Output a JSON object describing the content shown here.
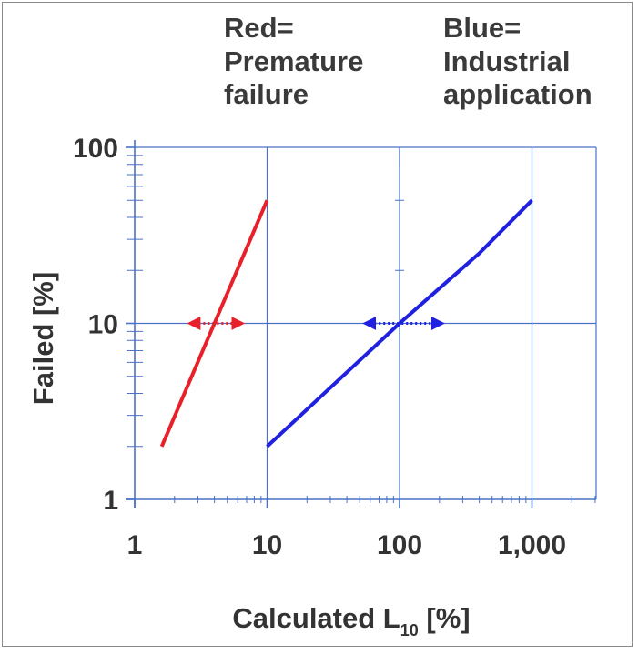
{
  "chart_data": {
    "type": "line",
    "x_scale": "log",
    "y_scale": "log",
    "xlim": [
      1,
      3000
    ],
    "ylim": [
      1,
      100
    ],
    "x_ticks": [
      1,
      10,
      100,
      1000
    ],
    "x_tick_labels": [
      "1",
      "10",
      "100",
      "1,000"
    ],
    "y_ticks": [
      1,
      10,
      100
    ],
    "y_tick_labels": [
      "1",
      "10",
      "100"
    ],
    "xlabel_main": "Calculated L",
    "xlabel_sub": "10",
    "xlabel_unit": " [%]",
    "ylabel": "Failed [%]",
    "grid": "major only",
    "annotations": {
      "red": [
        "Red=",
        "Premature",
        "failure"
      ],
      "blue": [
        "Blue=",
        "Industrial",
        "application"
      ]
    },
    "series": [
      {
        "color": "#e8202a",
        "points": [
          [
            1.6,
            2
          ],
          [
            10,
            50
          ]
        ],
        "spread_arrow": {
          "y": 10,
          "x_from": 2.6,
          "x_to": 6.5
        }
      },
      {
        "color": "#2020e0",
        "points": [
          [
            10,
            2
          ],
          [
            100,
            10
          ],
          [
            400,
            25
          ],
          [
            1000,
            50
          ]
        ],
        "spread_arrow": {
          "y": 10,
          "x_from": 55,
          "x_to": 210
        }
      }
    ]
  }
}
